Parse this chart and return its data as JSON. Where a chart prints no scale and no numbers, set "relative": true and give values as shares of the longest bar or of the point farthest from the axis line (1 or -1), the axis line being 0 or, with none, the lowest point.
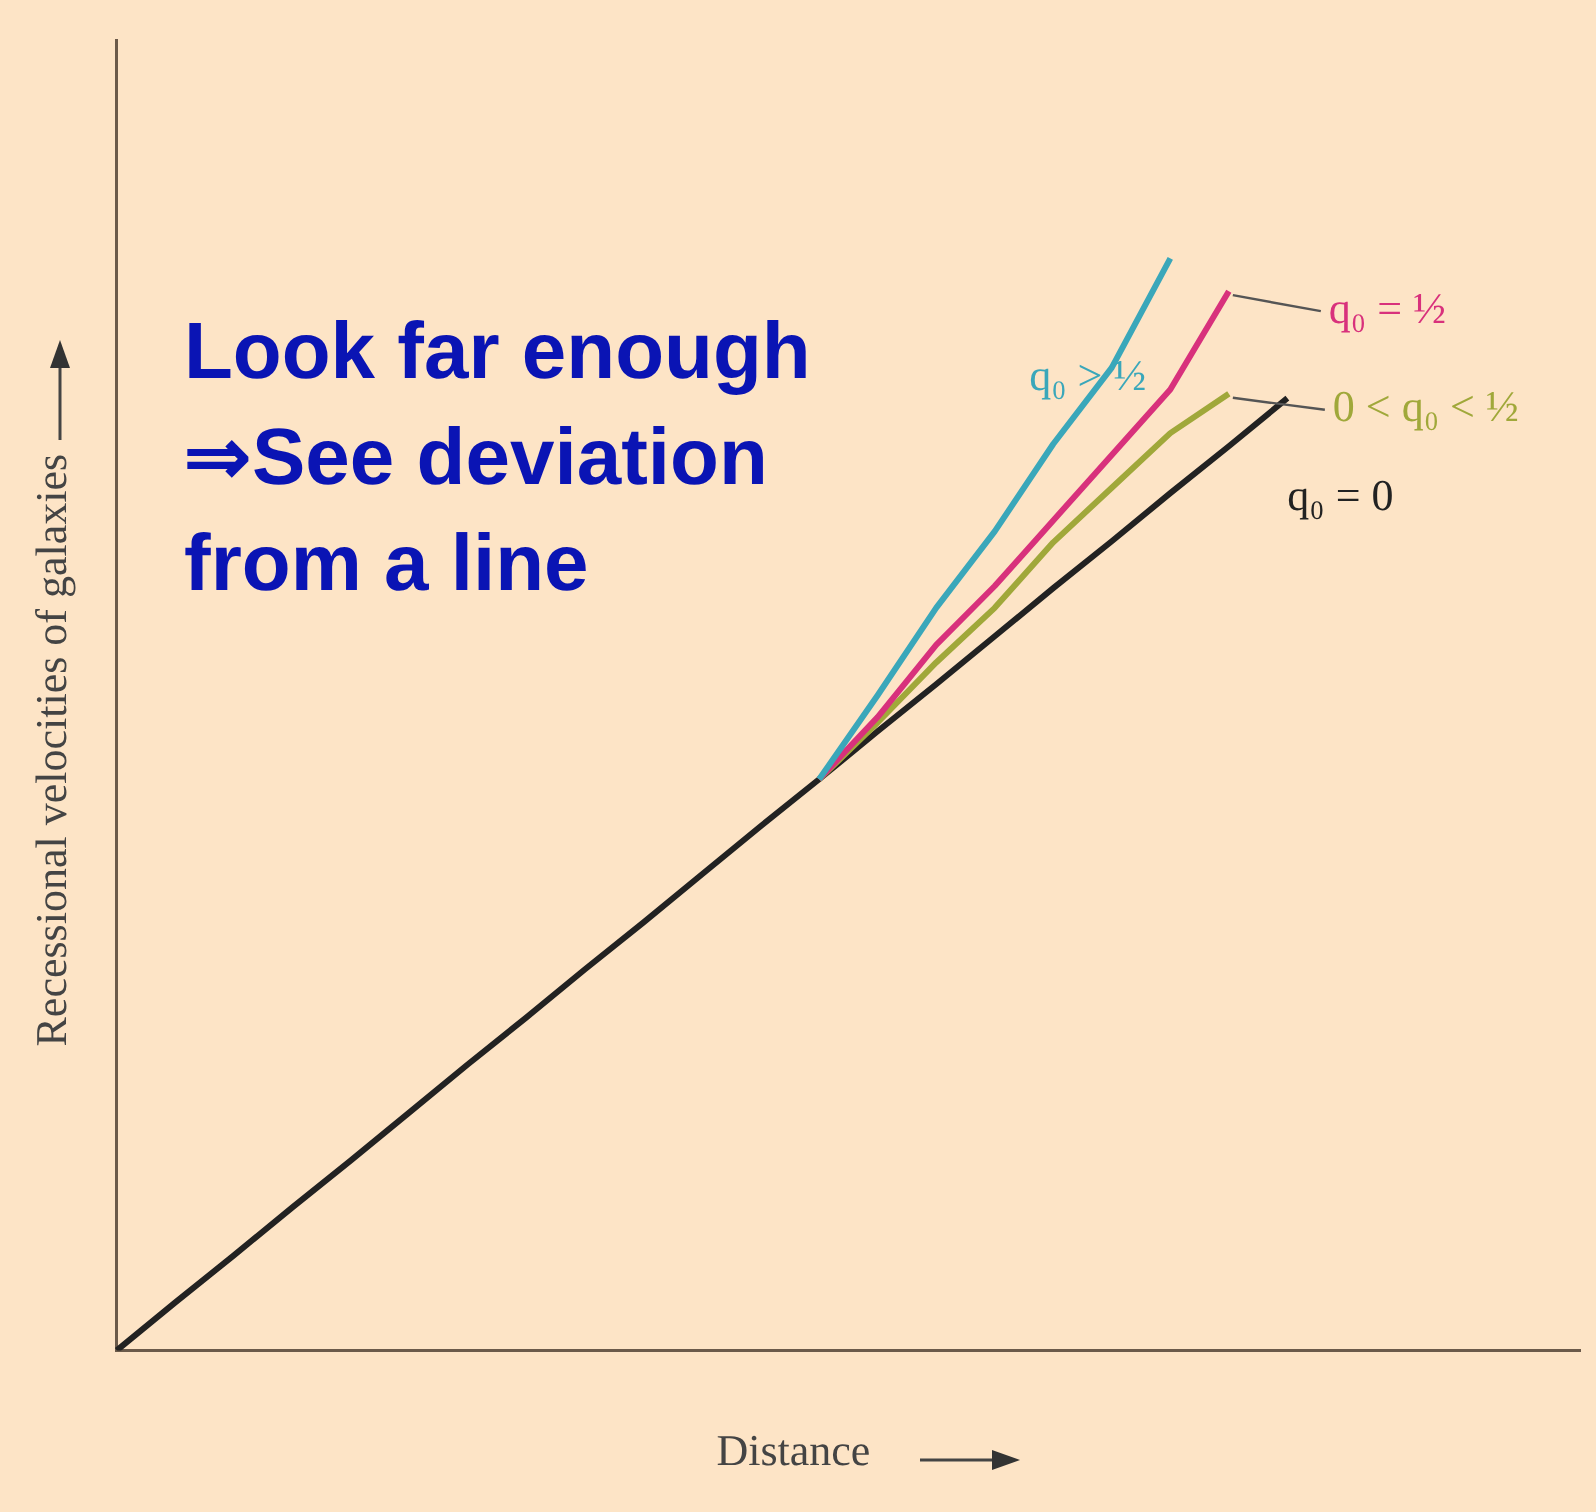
{
  "chart_data": {
    "type": "line",
    "relative": true,
    "xlabel": "Distance",
    "ylabel": "Recessional velocities of galaxies",
    "legend": "top right",
    "marker": "none",
    "line_style": "solid",
    "categories": [
      null,
      null,
      null,
      null,
      null,
      null,
      null,
      null,
      null,
      null,
      null,
      null,
      null,
      null,
      null,
      null,
      null,
      null,
      null,
      null,
      null,
      null,
      null,
      null,
      null,
      null
    ],
    "annotations": [
      "Look far enough\n⇒See deviation\nfrom a line"
    ],
    "series": [
      {
        "name": "q₀ > ½",
        "color": "#3aa7ba",
        "values": [
          null,
          null,
          null,
          null,
          null,
          null,
          null,
          null,
          null,
          null,
          null,
          null,
          0.523,
          0.6,
          0.68,
          0.75,
          0.83,
          0.9,
          1,
          null,
          null,
          null,
          null,
          null,
          null,
          null
        ]
      },
      {
        "name": "q₀ = ½",
        "color": "#d8317c",
        "values": [
          null,
          null,
          null,
          null,
          null,
          null,
          null,
          null,
          null,
          null,
          null,
          null,
          0.523,
          0.58,
          0.646,
          0.7,
          0.76,
          0.82,
          0.88,
          0.97,
          null,
          null,
          null,
          null,
          null,
          null
        ]
      },
      {
        "name": "0 < q₀ < ½",
        "color": "#a0a83a",
        "values": [
          null,
          null,
          null,
          null,
          null,
          null,
          null,
          null,
          null,
          null,
          null,
          null,
          0.523,
          0.575,
          0.63,
          0.68,
          0.74,
          0.79,
          0.84,
          0.876,
          null,
          null,
          null,
          null,
          null,
          null
        ]
      },
      {
        "name": "q₀ = 0",
        "color": "#222222",
        "values": [
          0,
          0.044,
          0.087,
          0.131,
          0.174,
          0.218,
          0.262,
          0.305,
          0.349,
          0.392,
          0.436,
          0.48,
          0.523,
          0.567,
          0.61,
          0.654,
          0.698,
          0.741,
          0.785,
          0.828,
          0.872,
          null,
          null,
          null,
          null,
          null
        ]
      }
    ]
  }
}
